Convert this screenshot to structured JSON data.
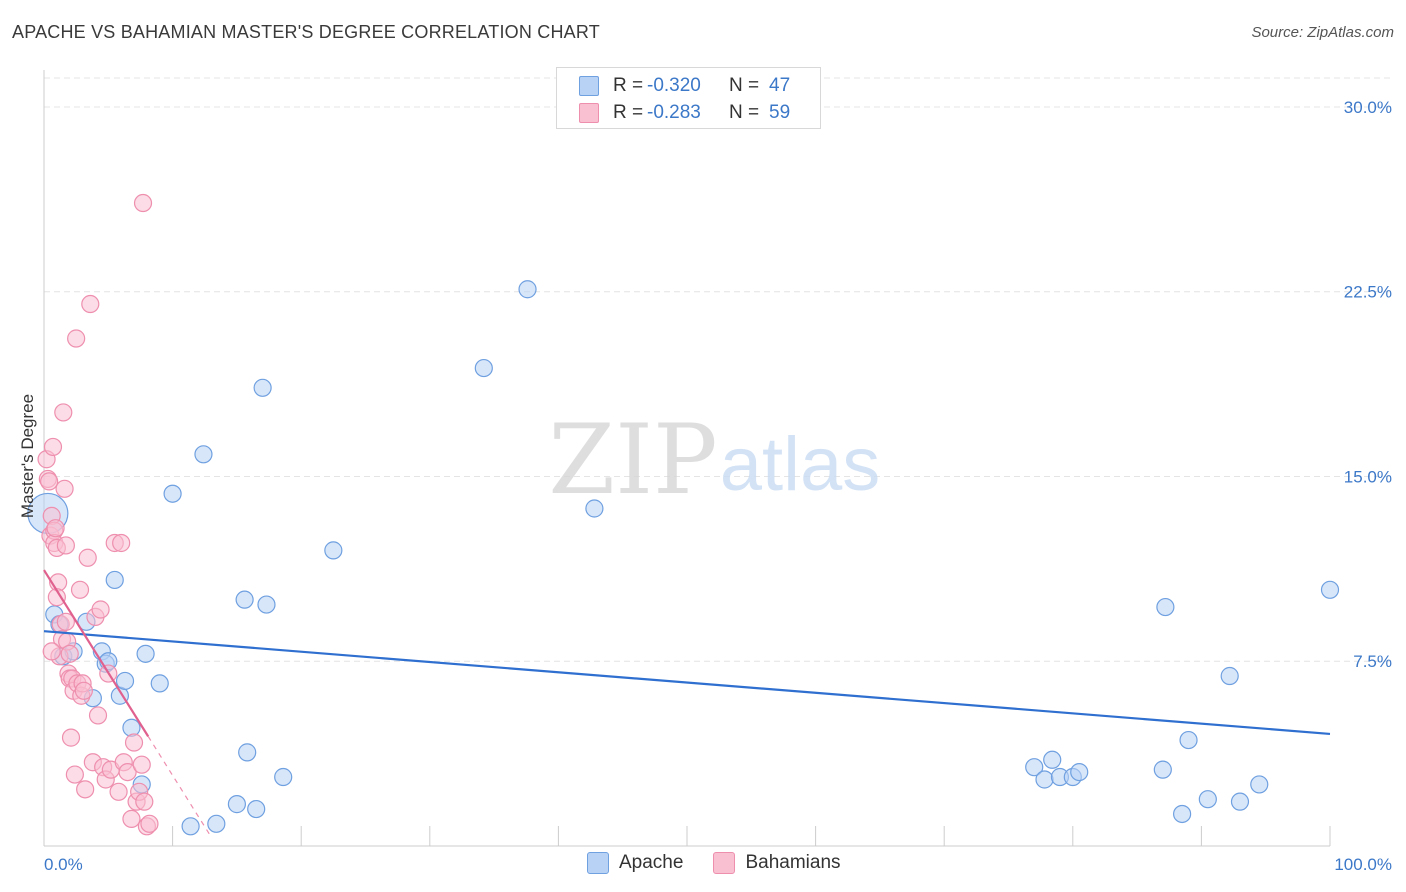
{
  "title": "APACHE VS BAHAMIAN MASTER'S DEGREE CORRELATION CHART",
  "source": "Source: ZipAtlas.com",
  "watermark": {
    "zip": "ZIP",
    "atlas": "atlas"
  },
  "colors": {
    "apache_fill": "#b8d2f5",
    "apache_stroke": "#6fa0e0",
    "apache_line": "#2f6fcf",
    "bahamian_fill": "#f9c0d2",
    "bahamian_stroke": "#ee8fae",
    "bahamian_line": "#e0608e",
    "tick_label": "#3c78c8",
    "grid": "#e4e4e4"
  },
  "legend": {
    "apache": {
      "r_label": "R =",
      "r_value": "-0.320",
      "n_label": "N =",
      "n_value": "47"
    },
    "bahamians": {
      "r_label": "R =",
      "r_value": "-0.283",
      "n_label": "N =",
      "n_value": "59"
    }
  },
  "chart_data": {
    "type": "scatter",
    "title": "APACHE VS BAHAMIAN MASTER'S DEGREE CORRELATION CHART",
    "xlabel": "",
    "ylabel": "Master's Degree",
    "xlim": [
      0,
      100
    ],
    "ylim": [
      0,
      31.5
    ],
    "x_tick_labels": [
      {
        "value": 0,
        "label": "0.0%"
      },
      {
        "value": 100,
        "label": "100.0%"
      }
    ],
    "y_tick_labels": [
      {
        "value": 7.5,
        "label": "7.5%"
      },
      {
        "value": 15,
        "label": "15.0%"
      },
      {
        "value": 22.5,
        "label": "22.5%"
      },
      {
        "value": 30,
        "label": "30.0%"
      }
    ],
    "grid": true,
    "legend_position": "top-center",
    "series": [
      {
        "name": "Apache",
        "points": [
          [
            0.3,
            13.5
          ],
          [
            0.8,
            9.4
          ],
          [
            1.2,
            9.0
          ],
          [
            1.5,
            7.7
          ],
          [
            2.3,
            7.9
          ],
          [
            3.3,
            9.1
          ],
          [
            3.8,
            6.0
          ],
          [
            4.5,
            7.9
          ],
          [
            4.8,
            7.4
          ],
          [
            5.0,
            7.5
          ],
          [
            5.5,
            10.8
          ],
          [
            5.9,
            6.1
          ],
          [
            6.3,
            6.7
          ],
          [
            6.8,
            4.8
          ],
          [
            7.6,
            2.5
          ],
          [
            7.9,
            7.8
          ],
          [
            9.0,
            6.6
          ],
          [
            10.0,
            14.3
          ],
          [
            11.4,
            0.8
          ],
          [
            12.4,
            15.9
          ],
          [
            13.4,
            0.9
          ],
          [
            15.0,
            1.7
          ],
          [
            15.6,
            10.0
          ],
          [
            15.8,
            3.8
          ],
          [
            16.5,
            1.5
          ],
          [
            17.0,
            18.6
          ],
          [
            17.3,
            9.8
          ],
          [
            18.6,
            2.8
          ],
          [
            22.5,
            12.0
          ],
          [
            34.2,
            19.4
          ],
          [
            37.6,
            22.6
          ],
          [
            42.8,
            13.7
          ],
          [
            77.0,
            3.2
          ],
          [
            77.8,
            2.7
          ],
          [
            78.4,
            3.5
          ],
          [
            79.0,
            2.8
          ],
          [
            80.0,
            2.8
          ],
          [
            80.5,
            3.0
          ],
          [
            87.2,
            9.7
          ],
          [
            87.0,
            3.1
          ],
          [
            88.5,
            1.3
          ],
          [
            89.0,
            4.3
          ],
          [
            90.5,
            1.9
          ],
          [
            92.2,
            6.9
          ],
          [
            93.0,
            1.8
          ],
          [
            94.5,
            2.5
          ],
          [
            100.0,
            10.4
          ]
        ],
        "trend": {
          "x_start": 0,
          "y_start": 8.72,
          "x_end": 100,
          "y_end": 4.55
        }
      },
      {
        "name": "Bahamians",
        "points": [
          [
            0.2,
            15.7
          ],
          [
            0.3,
            14.9
          ],
          [
            0.4,
            14.8
          ],
          [
            0.5,
            12.6
          ],
          [
            0.6,
            13.4
          ],
          [
            0.7,
            16.2
          ],
          [
            0.8,
            12.8
          ],
          [
            0.8,
            12.3
          ],
          [
            0.9,
            12.9
          ],
          [
            1.0,
            12.1
          ],
          [
            1.1,
            10.7
          ],
          [
            1.2,
            7.7
          ],
          [
            1.3,
            9.0
          ],
          [
            1.4,
            8.4
          ],
          [
            1.5,
            17.6
          ],
          [
            1.6,
            14.5
          ],
          [
            1.7,
            9.1
          ],
          [
            1.7,
            12.2
          ],
          [
            1.8,
            8.3
          ],
          [
            1.9,
            7.0
          ],
          [
            2.0,
            6.8
          ],
          [
            2.1,
            4.4
          ],
          [
            2.2,
            6.8
          ],
          [
            2.3,
            6.3
          ],
          [
            2.4,
            2.9
          ],
          [
            2.6,
            6.6
          ],
          [
            2.8,
            10.4
          ],
          [
            2.9,
            6.1
          ],
          [
            3.0,
            6.6
          ],
          [
            3.2,
            2.3
          ],
          [
            3.4,
            11.7
          ],
          [
            3.6,
            22.0
          ],
          [
            3.8,
            3.4
          ],
          [
            4.0,
            9.3
          ],
          [
            4.2,
            5.3
          ],
          [
            4.4,
            9.6
          ],
          [
            4.6,
            3.2
          ],
          [
            4.8,
            2.7
          ],
          [
            5.0,
            7.0
          ],
          [
            5.2,
            3.1
          ],
          [
            5.5,
            12.3
          ],
          [
            5.8,
            2.2
          ],
          [
            6.0,
            12.3
          ],
          [
            6.2,
            3.4
          ],
          [
            6.5,
            3.0
          ],
          [
            6.8,
            1.1
          ],
          [
            7.0,
            4.2
          ],
          [
            7.2,
            1.8
          ],
          [
            7.4,
            2.2
          ],
          [
            7.6,
            3.3
          ],
          [
            7.8,
            1.8
          ],
          [
            8.0,
            0.8
          ],
          [
            8.2,
            0.9
          ],
          [
            2.5,
            20.6
          ],
          [
            3.1,
            6.3
          ],
          [
            2.0,
            7.8
          ],
          [
            1.0,
            10.1
          ],
          [
            7.7,
            26.1
          ],
          [
            0.6,
            7.9
          ]
        ],
        "trend": {
          "x_start": 0,
          "y_start": 11.2,
          "x_end": 8.1,
          "y_end": 4.45,
          "dashed_to_x": 13.0
        }
      }
    ]
  }
}
